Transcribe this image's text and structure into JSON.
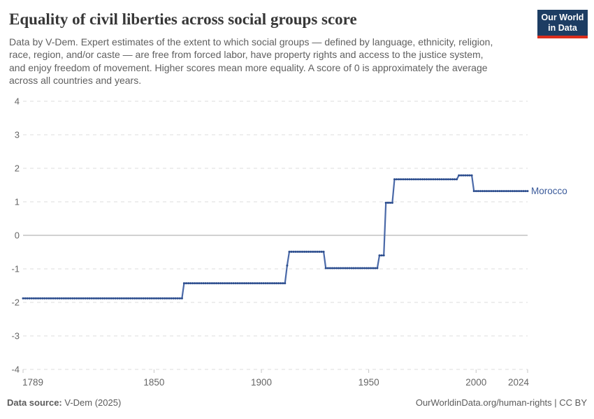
{
  "header": {
    "title": "Equality of civil liberties across social groups score",
    "subtitle_lines": [
      "Data by V-Dem. Expert estimates of the extent to which social groups — defined by language, ethnicity, religion,",
      "race, region, and/or caste — are free from forced labor, have property rights and access to the justice system,",
      "and enjoy freedom of movement. Higher scores mean more equality. A score of 0 is approximately the average",
      "across all countries and years."
    ],
    "logo": {
      "line1": "Our World",
      "line2": "in Data"
    }
  },
  "footer": {
    "source_label": "Data source:",
    "source_value": " V-Dem (2025)",
    "credit": "OurWorldinData.org/human-rights | CC BY"
  },
  "chart_data": {
    "type": "line",
    "title": "Equality of civil liberties across social groups score",
    "entity_label": "Morocco",
    "xlim": [
      1789,
      2024
    ],
    "ylim": [
      -4,
      4
    ],
    "x_ticks": [
      1789,
      1850,
      1900,
      1950,
      2000,
      2024
    ],
    "y_ticks": [
      4,
      3,
      2,
      1,
      0,
      -1,
      -2,
      -3,
      -4
    ],
    "grid": "horizontal-dashed, solid zero line",
    "legend_position": "end-of-line-label",
    "series": [
      {
        "name": "Morocco",
        "step_segments": [
          {
            "from": 1789,
            "to": 1863,
            "value": -1.88
          },
          {
            "from": 1864,
            "to": 1911,
            "value": -1.43
          },
          {
            "from": 1912,
            "to": 1912,
            "value": -0.9
          },
          {
            "from": 1913,
            "to": 1929,
            "value": -0.49
          },
          {
            "from": 1930,
            "to": 1954,
            "value": -0.98
          },
          {
            "from": 1955,
            "to": 1957,
            "value": -0.6
          },
          {
            "from": 1958,
            "to": 1961,
            "value": 0.97
          },
          {
            "from": 1962,
            "to": 1991,
            "value": 1.67
          },
          {
            "from": 1992,
            "to": 1998,
            "value": 1.79
          },
          {
            "from": 1999,
            "to": 2024,
            "value": 1.32
          }
        ]
      }
    ],
    "colors": {
      "line": "#4a69a8",
      "marker": "#2c4d8d",
      "entity_label": "#3a5a9a",
      "gridline": "#dcdcdc",
      "zero_line": "#a3a3a3",
      "axis_text": "#666666",
      "logo_bg": "#1d3d63",
      "logo_bar": "#dc2e1c"
    }
  }
}
